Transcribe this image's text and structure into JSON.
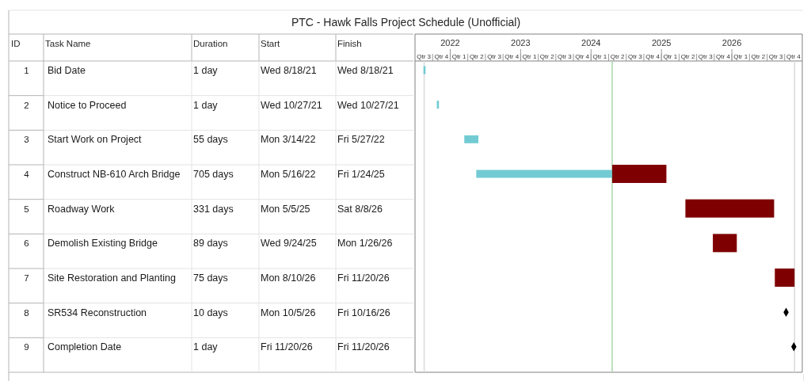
{
  "chart_data": {
    "type": "bar",
    "orientation": "horizontal",
    "title": "PTC - Hawk Falls Project Schedule (Unofficial)",
    "categories": [
      null,
      null,
      null,
      null,
      null,
      null,
      null,
      null,
      null
    ],
    "series": [
      {
        "color": "#72cbd3",
        "base": [
          2021.62,
          2021.81,
          2022.2,
          2022.37,
          null,
          null,
          null,
          null,
          null
        ],
        "values": [
          0.03,
          0.03,
          0.2,
          1.93,
          null,
          null,
          null,
          null,
          null
        ]
      },
      {
        "color": "#7f0000",
        "base": [
          null,
          null,
          null,
          2024.3,
          2025.34,
          2025.73,
          2026.61,
          null,
          null
        ],
        "values": [
          null,
          null,
          null,
          0.77,
          1.26,
          0.34,
          0.28,
          null,
          null
        ]
      },
      {
        "type": "scatter",
        "color": "#000000",
        "marker": "diamond",
        "values": [
          null,
          null,
          null,
          null,
          null,
          null,
          null,
          2026.77,
          2026.88
        ]
      }
    ],
    "xlim": [
      2021.5,
      2027.0
    ],
    "xticks": [
      2022,
      2023,
      2024,
      2025,
      2026
    ],
    "ref_lines": [
      {
        "axis": "x",
        "value": 2024.3,
        "color": "#a9d6a9"
      },
      {
        "axis": "x",
        "value": 2021.63,
        "color": "#d9d9d9"
      },
      {
        "axis": "x",
        "value": 2026.89,
        "color": "#d9d9d9"
      }
    ],
    "annotations": [
      "ID",
      "Task Name",
      "Duration",
      "Start",
      "Finish",
      "1",
      "Bid Date",
      "1 day",
      "Wed 8/18/21",
      "Wed 8/18/21",
      "2",
      "Notice to Proceed",
      "1 day",
      "Wed 10/27/21",
      "Wed 10/27/21",
      "3",
      "Start Work on Project",
      "55 days",
      "Mon 3/14/22",
      "Fri 5/27/22",
      "4",
      "Construct NB-610 Arch Bridge",
      "705 days",
      "Mon 5/16/22",
      "Fri 1/24/25",
      "5",
      "Roadway Work",
      "331 days",
      "Mon 5/5/25",
      "Sat 8/8/26",
      "6",
      "Demolish Existing Bridge",
      "89 days",
      "Wed 9/24/25",
      "Mon 1/26/26",
      "7",
      "Site Restoration and Planting",
      "75 days",
      "Mon 8/10/26",
      "Fri 11/20/26",
      "8",
      "SR534 Reconstruction",
      "10 days",
      "Mon 10/5/26",
      "Fri 10/16/26",
      "9",
      "Completion Date",
      "1 day",
      "Fri 11/20/26",
      "Fri 11/20/26",
      "Qtr 3",
      "Qtr 4",
      "Qtr 1",
      "Qtr 2",
      "Qtr 3",
      "Qtr 4",
      "Qtr 1",
      "Qtr 2",
      "Qtr 3",
      "Qtr 4",
      "Qtr 1",
      "Qtr 2",
      "Qtr 3",
      "Qtr 4",
      "Qtr 1",
      "Qtr 2",
      "Qtr 3",
      "Qtr 4",
      "Qtr 1",
      "Qtr 2",
      "Qtr 3",
      "Qtr 4"
    ]
  }
}
